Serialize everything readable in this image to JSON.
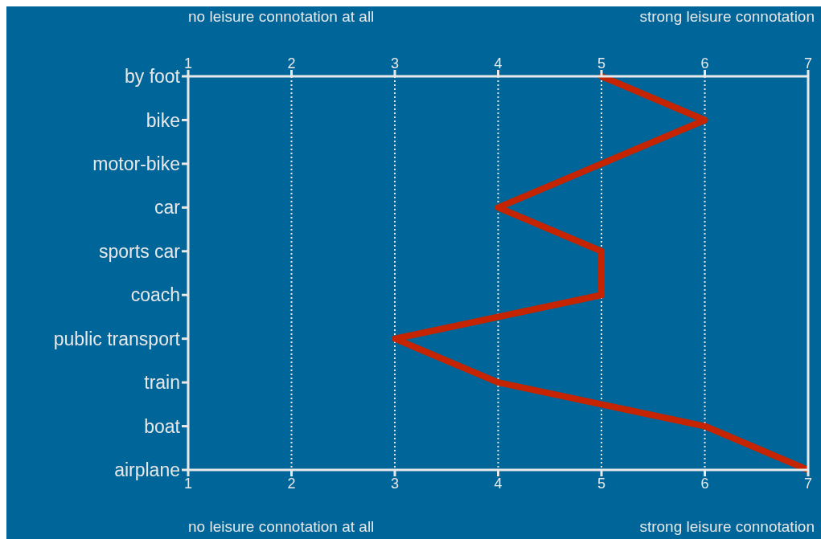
{
  "chart_data": {
    "type": "line",
    "orientation": "horizontal",
    "categories": [
      "by foot",
      "bike",
      "motor-bike",
      "car",
      "sports car",
      "coach",
      "public transport",
      "train",
      "boat",
      "airplane"
    ],
    "series": [
      {
        "color": "#c42400",
        "values": [
          5,
          6,
          5,
          4,
          5,
          5,
          3,
          4,
          6,
          7
        ]
      }
    ],
    "xlim": [
      1,
      7
    ],
    "xticks": [
      1,
      2,
      3,
      4,
      5,
      6,
      7
    ],
    "x2lim": [
      1,
      7
    ],
    "x2ticks": [
      1,
      2,
      3,
      4,
      5,
      6,
      7
    ],
    "annotations": [
      "no leisure connotation at all",
      "strong leisure connotation",
      "no leisure connotation at all",
      "strong leisure connotation"
    ],
    "grid": "x",
    "line_style": "solid"
  }
}
